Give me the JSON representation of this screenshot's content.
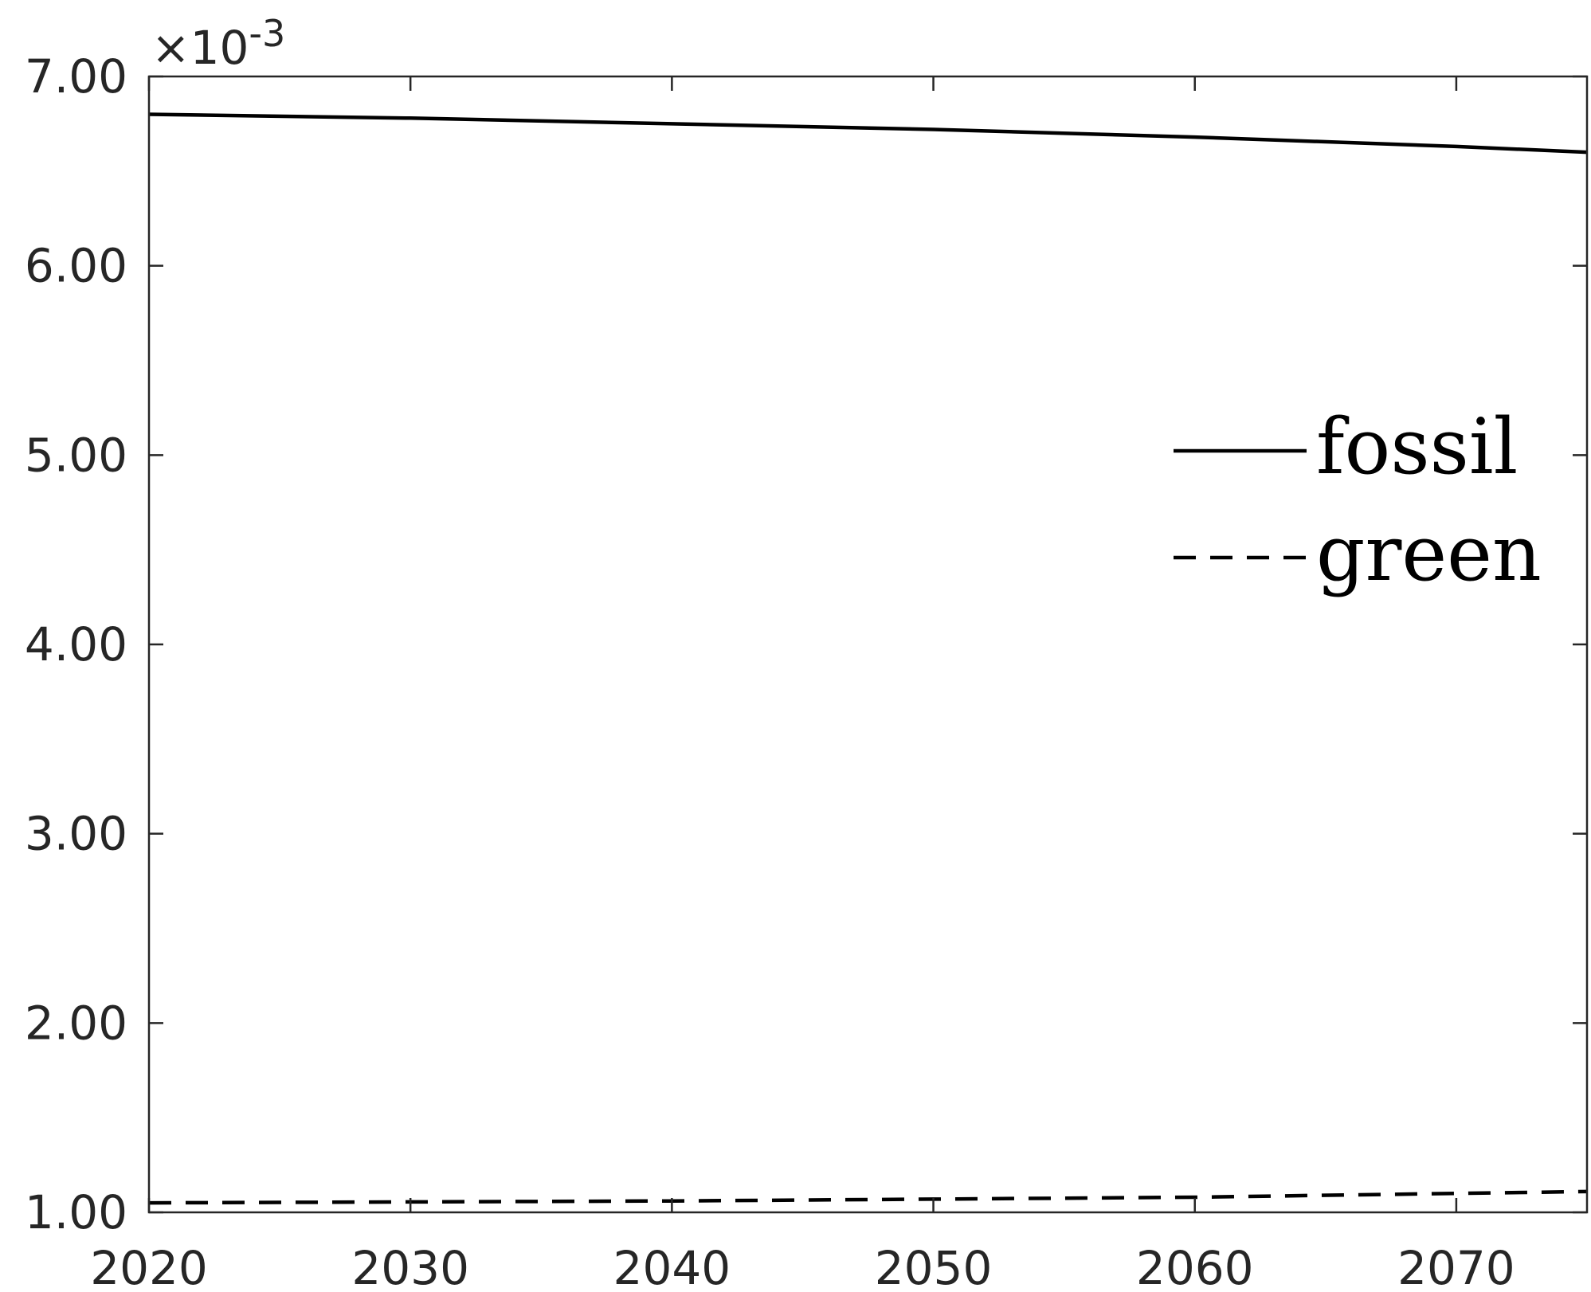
{
  "chart_data": {
    "type": "line",
    "title": "",
    "xlabel": "",
    "ylabel": "",
    "y_multiplier_label": {
      "prefix": "×10",
      "exponent": "-3"
    },
    "xlim": [
      2020,
      2075
    ],
    "ylim": [
      1.0,
      7.0
    ],
    "x_ticks": [
      2020,
      2030,
      2040,
      2050,
      2060,
      2070
    ],
    "x_tick_labels": [
      "2020",
      "2030",
      "2040",
      "2050",
      "2060",
      "2070"
    ],
    "y_ticks": [
      1,
      2,
      3,
      4,
      5,
      6,
      7
    ],
    "y_tick_labels": [
      "1.00",
      "2.00",
      "3.00",
      "4.00",
      "5.00",
      "6.00",
      "7.00"
    ],
    "grid": false,
    "legend_position": "right",
    "series": [
      {
        "name": "fossil",
        "style": "solid",
        "color": "#000000",
        "x": [
          2020,
          2030,
          2040,
          2050,
          2060,
          2070,
          2075
        ],
        "values": [
          6.8,
          6.78,
          6.75,
          6.72,
          6.68,
          6.63,
          6.6
        ]
      },
      {
        "name": "green",
        "style": "dashed",
        "color": "#000000",
        "x": [
          2020,
          2030,
          2040,
          2050,
          2060,
          2070,
          2075
        ],
        "values": [
          1.05,
          1.055,
          1.06,
          1.07,
          1.08,
          1.1,
          1.11
        ]
      }
    ]
  }
}
